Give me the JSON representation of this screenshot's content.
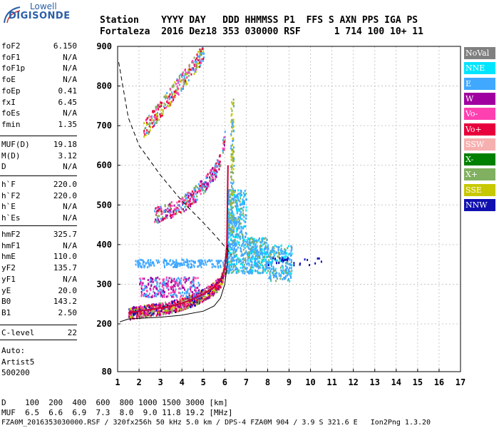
{
  "logo": {
    "line1": "Lowell",
    "line2": "DIGISONDE"
  },
  "header": {
    "row1": "Station    YYYY DAY   DDD HHMMSS P1  FFS S AXN PPS IGA PS",
    "row2": "Fortaleza  2016 Dez18 353 030000 RSF      1 714 100 10+ 11"
  },
  "params_group1": [
    {
      "k": "foF2",
      "v": "6.150"
    },
    {
      "k": "foF1",
      "v": "N/A"
    },
    {
      "k": "foF1p",
      "v": "N/A"
    },
    {
      "k": "foE",
      "v": "N/A"
    },
    {
      "k": "foEp",
      "v": "0.41"
    },
    {
      "k": "fxI",
      "v": "6.45"
    },
    {
      "k": "foEs",
      "v": "N/A"
    },
    {
      "k": "fmin",
      "v": "1.35"
    }
  ],
  "params_group2": [
    {
      "k": "MUF(D)",
      "v": "19.18"
    },
    {
      "k": "M(D)",
      "v": "3.12"
    },
    {
      "k": "D",
      "v": "N/A"
    }
  ],
  "params_group3": [
    {
      "k": "h`F",
      "v": "220.0"
    },
    {
      "k": "h`F2",
      "v": "220.0"
    },
    {
      "k": "h`E",
      "v": "N/A"
    },
    {
      "k": "h`Es",
      "v": "N/A"
    }
  ],
  "params_group4": [
    {
      "k": "hmF2",
      "v": "325.7"
    },
    {
      "k": "hmF1",
      "v": "N/A"
    },
    {
      "k": "hmE",
      "v": "110.0"
    },
    {
      "k": "yF2",
      "v": "135.7"
    },
    {
      "k": "yF1",
      "v": "N/A"
    },
    {
      "k": "yE",
      "v": "20.0"
    },
    {
      "k": "B0",
      "v": "143.2"
    },
    {
      "k": "B1",
      "v": "2.50"
    }
  ],
  "params_group5": [
    {
      "k": "C-level",
      "v": "22"
    }
  ],
  "auto": {
    "line1": "Auto:",
    "line2": "Artist5",
    "line3": "500200"
  },
  "legend": [
    {
      "label": "NoVal",
      "color": "#808080"
    },
    {
      "label": "NNE",
      "color": "#00e5ff"
    },
    {
      "label": "E",
      "color": "#40a8ff"
    },
    {
      "label": "W",
      "color": "#a000a0"
    },
    {
      "label": "Vo-",
      "color": "#ff40b0"
    },
    {
      "label": "Vo+",
      "color": "#e8003c"
    },
    {
      "label": "SSW",
      "color": "#f7b0b0"
    },
    {
      "label": "X-",
      "color": "#008000"
    },
    {
      "label": "X+",
      "color": "#80b060"
    },
    {
      "label": "SSE",
      "color": "#c8c800"
    },
    {
      "label": "NNW",
      "color": "#1010b0"
    }
  ],
  "chart_data": {
    "type": "scatter",
    "x_ticks": [
      "1",
      "2",
      "3",
      "4",
      "5",
      "6",
      "7",
      "8",
      "9",
      "10",
      "11",
      "12",
      "13",
      "14",
      "15",
      "16",
      "17"
    ],
    "y_ticks": [
      "80",
      "200",
      "300",
      "400",
      "500",
      "600",
      "700",
      "800",
      "900"
    ],
    "xlim": [
      1,
      17
    ],
    "ylim": [
      80,
      900
    ],
    "grid": true,
    "trace_freq": [
      1.5,
      2,
      2.5,
      3,
      3.5,
      4,
      4.5,
      5,
      5.5,
      5.8,
      6.0,
      6.1,
      6.15
    ],
    "trace_height": [
      228,
      232,
      236,
      240,
      245,
      252,
      262,
      275,
      292,
      310,
      340,
      400,
      600
    ],
    "profile_freq": [
      1.1,
      1.5,
      2,
      3,
      4,
      5,
      5.5,
      5.8,
      6.0,
      6.1,
      6.15
    ],
    "profile_height": [
      205,
      212,
      214,
      217,
      222,
      232,
      245,
      265,
      300,
      340,
      400
    ],
    "muf_freq": [
      1.05,
      1.5,
      2,
      3,
      4,
      5,
      5.6,
      6.0,
      6.3
    ],
    "muf_height": [
      860,
      720,
      650,
      575,
      510,
      455,
      420,
      395,
      375
    ]
  },
  "bottom": {
    "row_d": "D    100  200  400  600  800 1000 1500 3000 [km]",
    "row_muf": "MUF  6.5  6.6  6.9  7.3  8.0  9.0 11.8 19.2 [MHz]",
    "footer": "FZA0M_2016353030000.RSF / 320fx256h 50 kHz 5.0 km / DPS-4 FZA0M 904 / 3.9 S 321.6 E   Ion2Png 1.3.20"
  }
}
